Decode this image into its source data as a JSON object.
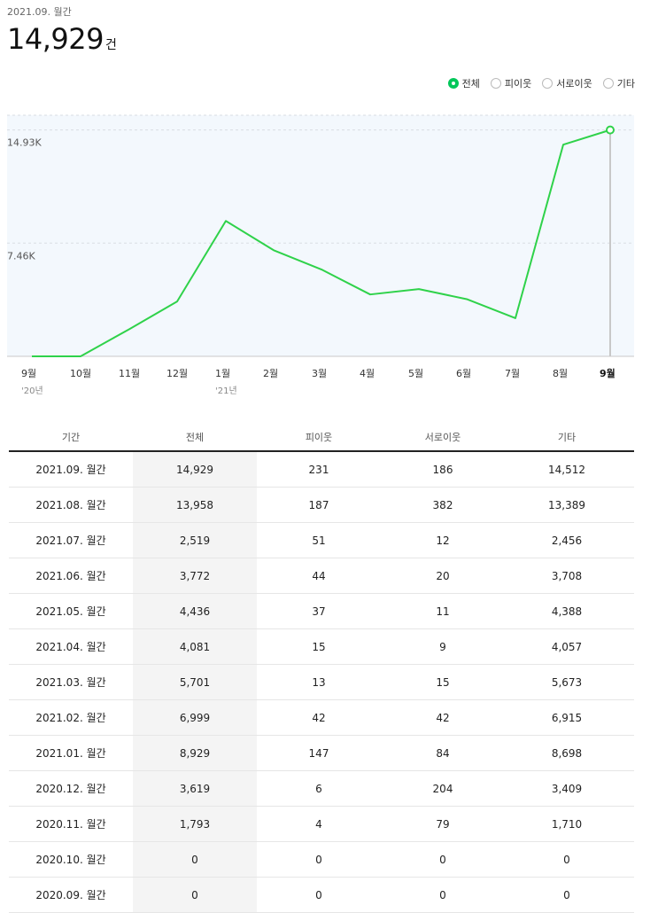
{
  "header": {
    "period": "2021.09. 월간",
    "total": "14,929",
    "unit": "건"
  },
  "legend": [
    {
      "label": "전체",
      "selected": true
    },
    {
      "label": "피이웃",
      "selected": false
    },
    {
      "label": "서로이웃",
      "selected": false
    },
    {
      "label": "기타",
      "selected": false
    }
  ],
  "colors": {
    "line": "#2fd24a",
    "accent": "#03c75a",
    "plot_bg": "#f3f8fd",
    "grid": "#d9dde3"
  },
  "chart_data": {
    "type": "line",
    "categories": [
      "9월",
      "10월",
      "11월",
      "12월",
      "1월",
      "2월",
      "3월",
      "4월",
      "5월",
      "6월",
      "7월",
      "8월",
      "9월"
    ],
    "year_labels": [
      "'20년",
      "",
      "",
      "",
      "'21년",
      "",
      "",
      "",
      "",
      "",
      "",
      "",
      ""
    ],
    "series": [
      {
        "values": [
          0,
          0,
          1793,
          3619,
          8929,
          6999,
          5701,
          4081,
          4436,
          3772,
          2519,
          13958,
          14929
        ]
      }
    ],
    "y_ticks": [
      {
        "value": 7464.5,
        "label": "7.46K"
      },
      {
        "value": 14929,
        "label": "14.93K"
      }
    ],
    "ylim": [
      0,
      15900
    ],
    "highlight_index": 12,
    "grid": true
  },
  "table": {
    "headers": [
      "기간",
      "전체",
      "피이웃",
      "서로이웃",
      "기타"
    ],
    "rows": [
      [
        "2021.09. 월간",
        "14,929",
        "231",
        "186",
        "14,512"
      ],
      [
        "2021.08. 월간",
        "13,958",
        "187",
        "382",
        "13,389"
      ],
      [
        "2021.07. 월간",
        "2,519",
        "51",
        "12",
        "2,456"
      ],
      [
        "2021.06. 월간",
        "3,772",
        "44",
        "20",
        "3,708"
      ],
      [
        "2021.05. 월간",
        "4,436",
        "37",
        "11",
        "4,388"
      ],
      [
        "2021.04. 월간",
        "4,081",
        "15",
        "9",
        "4,057"
      ],
      [
        "2021.03. 월간",
        "5,701",
        "13",
        "15",
        "5,673"
      ],
      [
        "2021.02. 월간",
        "6,999",
        "42",
        "42",
        "6,915"
      ],
      [
        "2021.01. 월간",
        "8,929",
        "147",
        "84",
        "8,698"
      ],
      [
        "2020.12. 월간",
        "3,619",
        "6",
        "204",
        "3,409"
      ],
      [
        "2020.11. 월간",
        "1,793",
        "4",
        "79",
        "1,710"
      ],
      [
        "2020.10. 월간",
        "0",
        "0",
        "0",
        "0"
      ],
      [
        "2020.09. 월간",
        "0",
        "0",
        "0",
        "0"
      ]
    ]
  }
}
